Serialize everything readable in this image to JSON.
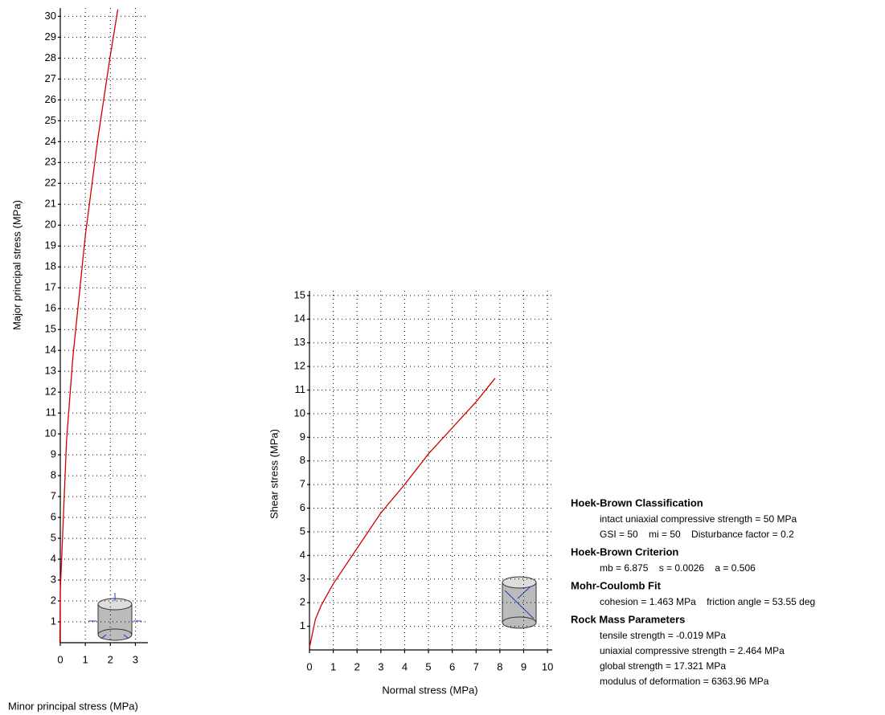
{
  "chart_data": [
    {
      "type": "line",
      "xlabel": "Minor principal stress (MPa)",
      "ylabel": "Major principal stress (MPa)",
      "xlim": [
        0,
        3.5
      ],
      "ylim": [
        0,
        30.4
      ],
      "xticks": [
        0,
        1,
        2,
        3
      ],
      "yticks": [
        1,
        2,
        3,
        4,
        5,
        6,
        7,
        8,
        9,
        10,
        11,
        12,
        13,
        14,
        15,
        16,
        17,
        18,
        19,
        20,
        21,
        22,
        23,
        24,
        25,
        26,
        27,
        28,
        29,
        30
      ],
      "grid": true,
      "series": [
        {
          "color": "#d00000",
          "x": [
            -0.019,
            0,
            0.25,
            0.5,
            1,
            1.5,
            2,
            2.3
          ],
          "values": [
            0,
            2.46,
            9.68,
            13.64,
            19.5,
            24.14,
            28.14,
            30.34
          ]
        }
      ]
    },
    {
      "type": "line",
      "xlabel": "Normal stress (MPa)",
      "ylabel": "Shear stress (MPa)",
      "xlim": [
        0,
        10.2
      ],
      "ylim": [
        0,
        15.2
      ],
      "xticks": [
        0,
        1,
        2,
        3,
        4,
        5,
        6,
        7,
        8,
        9,
        10
      ],
      "yticks": [
        1,
        2,
        3,
        4,
        5,
        6,
        7,
        8,
        9,
        10,
        11,
        12,
        13,
        14,
        15
      ],
      "grid": true,
      "series": [
        {
          "color": "#d00000",
          "x": [
            0,
            0.25,
            0.5,
            1,
            2,
            3,
            4,
            5,
            6,
            7,
            7.8
          ],
          "values": [
            0.1,
            1.3,
            1.9,
            2.8,
            4.3,
            5.8,
            7.0,
            8.3,
            9.4,
            10.5,
            11.5
          ]
        }
      ]
    }
  ],
  "panel": {
    "sections": [
      {
        "heading": "Hoek-Brown Classification",
        "lines": [
          "intact uniaxial compressive strength = 50 MPa",
          "GSI = 50    mi = 50    Disturbance factor = 0.2"
        ]
      },
      {
        "heading": "Hoek-Brown Criterion",
        "lines": [
          "mb = 6.875    s = 0.0026    a = 0.506"
        ]
      },
      {
        "heading": "Mohr-Coulomb Fit",
        "lines": [
          "cohesion = 1.463 MPa    friction angle = 53.55 deg"
        ]
      },
      {
        "heading": "Rock Mass Parameters",
        "lines": [
          "tensile strength = -0.019 MPa",
          "uniaxial compressive strength = 2.464 MPa",
          "global strength = 17.321 MPa",
          "modulus of deformation = 6363.96 MPa"
        ]
      }
    ]
  }
}
